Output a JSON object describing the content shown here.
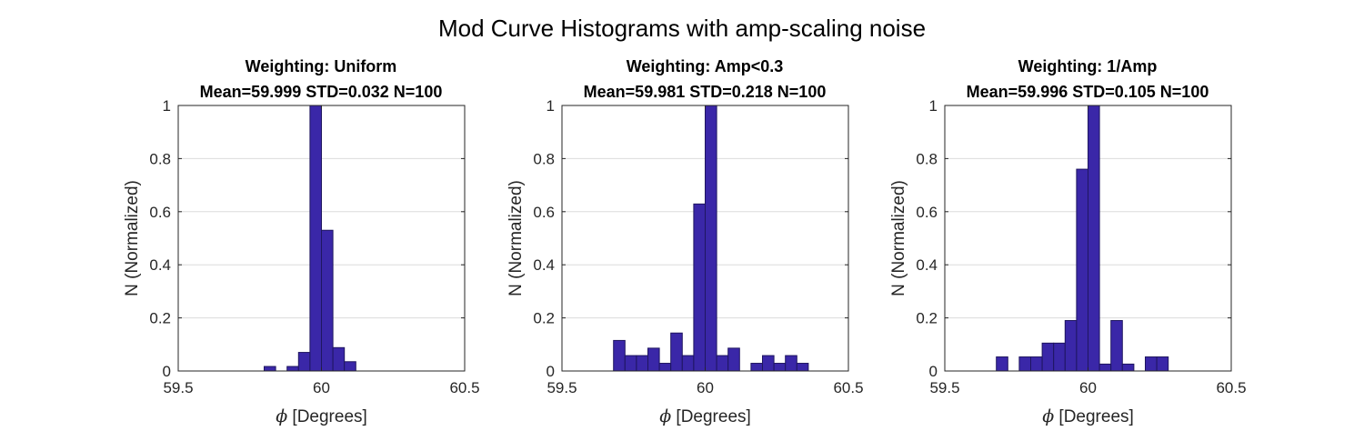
{
  "figure": {
    "suptitle": "Mod Curve Histograms with amp-scaling noise"
  },
  "colors": {
    "bar_fill": "#3a27a8",
    "bar_edge": "#1f1660",
    "grid": "#dcdcdc",
    "axis": "#262626"
  },
  "chart_data": [
    {
      "type": "bar",
      "title": "Weighting: Uniform",
      "subtitle": "Mean=59.999 STD=0.032 N=100",
      "xlabel_symbol": "ϕ",
      "xlabel": "[Degrees]",
      "ylabel": "N (Normalized)",
      "xlim": [
        59.5,
        60.5
      ],
      "ylim": [
        0,
        1
      ],
      "xticks": [
        "59.5",
        "60",
        "60.5"
      ],
      "yticks": [
        "0",
        "0.2",
        "0.4",
        "0.6",
        "0.8",
        "1"
      ],
      "grid": "y",
      "bin_edges_start": 59.6,
      "bin_width": 0.04,
      "values": [
        0,
        0,
        0,
        0,
        0,
        0.017,
        0,
        0.017,
        0.07,
        1,
        0.53,
        0.088,
        0.035,
        0,
        0,
        0,
        0,
        0,
        0,
        0,
        0,
        0
      ]
    },
    {
      "type": "bar",
      "title": "Weighting: Amp<0.3",
      "subtitle": "Mean=59.981 STD=0.218 N=100",
      "xlabel_symbol": "ϕ",
      "xlabel": "[Degrees]",
      "ylabel": "N (Normalized)",
      "xlim": [
        59.5,
        60.5
      ],
      "ylim": [
        0,
        1
      ],
      "xticks": [
        "59.5",
        "60",
        "60.5"
      ],
      "yticks": [
        "0",
        "0.2",
        "0.4",
        "0.6",
        "0.8",
        "1"
      ],
      "grid": "y",
      "bin_edges_start": 59.6,
      "bin_width": 0.04,
      "values": [
        0,
        0,
        0.115,
        0.058,
        0.058,
        0.086,
        0.029,
        0.143,
        0.058,
        0.629,
        1,
        0.058,
        0.086,
        0,
        0.029,
        0.058,
        0.029,
        0.058,
        0.029,
        0,
        0
      ]
    },
    {
      "type": "bar",
      "title": "Weighting: 1/Amp",
      "subtitle": "Mean=59.996 STD=0.105 N=100",
      "xlabel_symbol": "ϕ",
      "xlabel": "[Degrees]",
      "ylabel": "N (Normalized)",
      "xlim": [
        59.5,
        60.5
      ],
      "ylim": [
        0,
        1
      ],
      "xticks": [
        "59.5",
        "60",
        "60.5"
      ],
      "yticks": [
        "0",
        "0.2",
        "0.4",
        "0.6",
        "0.8",
        "1"
      ],
      "grid": "y",
      "bin_edges_start": 59.6,
      "bin_width": 0.04,
      "values": [
        0,
        0,
        0.053,
        0,
        0.053,
        0.053,
        0.105,
        0.105,
        0.19,
        0.76,
        1,
        0.026,
        0.19,
        0.026,
        0,
        0.053,
        0.053,
        0,
        0,
        0,
        0
      ]
    }
  ]
}
